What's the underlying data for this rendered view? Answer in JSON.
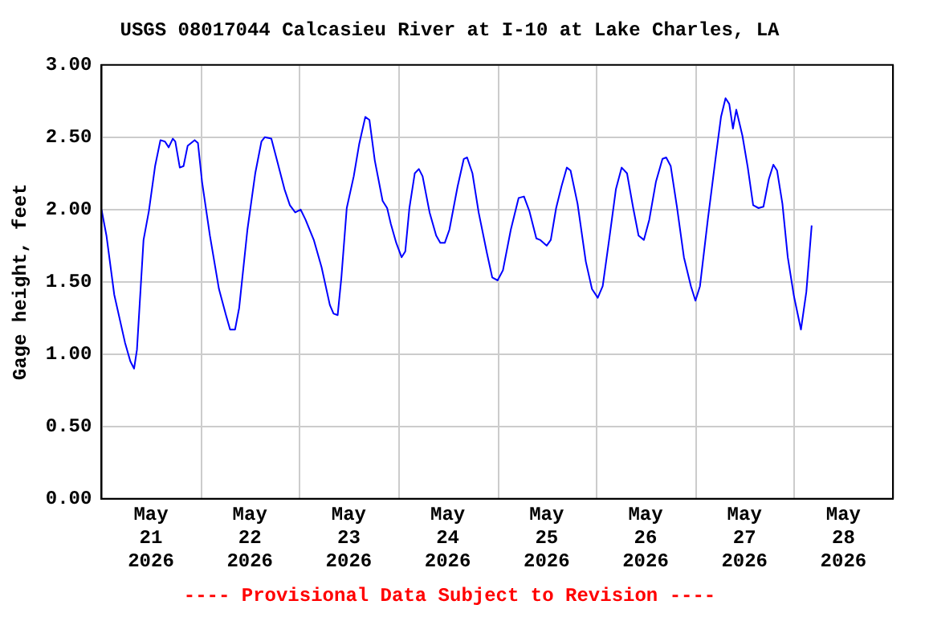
{
  "chart_data": {
    "type": "line",
    "title": "USGS 08017044 Calcasieu River at I-10 at Lake Charles, LA",
    "ylabel": "Gage height, feet",
    "annotations": [
      "---- Provisional Data Subject to Revision ----"
    ],
    "x": [
      "2026-05-21T00:00",
      "2026-05-21T01:12",
      "2026-05-21T03:06",
      "2026-05-21T05:42",
      "2026-05-21T07:00",
      "2026-05-21T07:54",
      "2026-05-21T08:36",
      "2026-05-21T10:12",
      "2026-05-21T11:30",
      "2026-05-21T13:00",
      "2026-05-21T14:18",
      "2026-05-21T15:24",
      "2026-05-21T16:18",
      "2026-05-21T17:18",
      "2026-05-21T17:54",
      "2026-05-21T19:00",
      "2026-05-21T19:54",
      "2026-05-21T20:54",
      "2026-05-21T22:36",
      "2026-05-21T23:24",
      "2026-05-22T00:24",
      "2026-05-22T02:18",
      "2026-05-22T04:30",
      "2026-05-22T06:12",
      "2026-05-22T07:12",
      "2026-05-22T08:24",
      "2026-05-22T09:24",
      "2026-05-22T11:24",
      "2026-05-22T13:18",
      "2026-05-22T14:48",
      "2026-05-22T15:36",
      "2026-05-22T17:12",
      "2026-05-22T18:24",
      "2026-05-22T20:24",
      "2026-05-22T21:42",
      "2026-05-22T23:00",
      "2026-05-23T00:18",
      "2026-05-23T01:30",
      "2026-05-23T03:30",
      "2026-05-23T05:24",
      "2026-05-23T07:24",
      "2026-05-23T08:18",
      "2026-05-23T09:18",
      "2026-05-23T10:12",
      "2026-05-23T11:30",
      "2026-05-23T13:12",
      "2026-05-23T14:30",
      "2026-05-23T16:00",
      "2026-05-23T17:00",
      "2026-05-23T18:18",
      "2026-05-23T20:12",
      "2026-05-23T21:18",
      "2026-05-23T22:12",
      "2026-05-23T23:30",
      "2026-05-24T00:48",
      "2026-05-24T01:42",
      "2026-05-24T02:42",
      "2026-05-24T04:00",
      "2026-05-24T05:00",
      "2026-05-24T05:54",
      "2026-05-24T07:36",
      "2026-05-24T09:12",
      "2026-05-24T10:12",
      "2026-05-24T11:18",
      "2026-05-24T12:24",
      "2026-05-24T14:24",
      "2026-05-24T15:54",
      "2026-05-24T16:42",
      "2026-05-24T18:00",
      "2026-05-24T19:30",
      "2026-05-24T21:30",
      "2026-05-24T22:48",
      "2026-05-25T00:06",
      "2026-05-25T01:24",
      "2026-05-25T03:18",
      "2026-05-25T05:12",
      "2026-05-25T06:30",
      "2026-05-25T07:48",
      "2026-05-25T09:30",
      "2026-05-25T10:24",
      "2026-05-25T12:00",
      "2026-05-25T13:00",
      "2026-05-25T14:18",
      "2026-05-25T15:36",
      "2026-05-25T16:54",
      "2026-05-25T17:48",
      "2026-05-25T19:30",
      "2026-05-25T21:30",
      "2026-05-25T23:00",
      "2026-05-26T00:24",
      "2026-05-26T01:36",
      "2026-05-26T03:18",
      "2026-05-26T04:48",
      "2026-05-26T06:12",
      "2026-05-26T07:30",
      "2026-05-26T09:00",
      "2026-05-26T10:18",
      "2026-05-26T11:36",
      "2026-05-26T12:54",
      "2026-05-26T14:30",
      "2026-05-26T16:06",
      "2026-05-26T17:00",
      "2026-05-26T18:06",
      "2026-05-26T19:36",
      "2026-05-26T21:18",
      "2026-05-26T23:00",
      "2026-05-27T00:06",
      "2026-05-27T01:12",
      "2026-05-27T03:06",
      "2026-05-27T05:06",
      "2026-05-27T06:18",
      "2026-05-27T07:24",
      "2026-05-27T08:18",
      "2026-05-27T09:12",
      "2026-05-27T10:00",
      "2026-05-27T11:30",
      "2026-05-27T12:48",
      "2026-05-27T14:06",
      "2026-05-27T15:24",
      "2026-05-27T16:36",
      "2026-05-27T17:54",
      "2026-05-27T19:00",
      "2026-05-27T19:54",
      "2026-05-27T21:12",
      "2026-05-27T22:30",
      "2026-05-28T00:00",
      "2026-05-28T01:42",
      "2026-05-28T03:00",
      "2026-05-28T04:18"
    ],
    "series": [
      {
        "color": "#0000ff",
        "values": [
          2.0,
          1.82,
          1.41,
          1.08,
          0.95,
          0.9,
          1.03,
          1.79,
          1.99,
          2.3,
          2.48,
          2.47,
          2.43,
          2.49,
          2.47,
          2.29,
          2.3,
          2.44,
          2.48,
          2.46,
          2.19,
          1.82,
          1.45,
          1.27,
          1.17,
          1.17,
          1.32,
          1.86,
          2.25,
          2.47,
          2.5,
          2.49,
          2.36,
          2.14,
          2.03,
          1.98,
          2.0,
          1.93,
          1.79,
          1.6,
          1.34,
          1.28,
          1.27,
          1.53,
          2.01,
          2.23,
          2.45,
          2.64,
          2.62,
          2.34,
          2.06,
          2.01,
          1.9,
          1.77,
          1.67,
          1.71,
          2.01,
          2.25,
          2.28,
          2.23,
          1.98,
          1.82,
          1.77,
          1.77,
          1.86,
          2.16,
          2.35,
          2.36,
          2.25,
          1.98,
          1.7,
          1.53,
          1.51,
          1.58,
          1.86,
          2.08,
          2.09,
          1.99,
          1.8,
          1.79,
          1.75,
          1.79,
          2.01,
          2.16,
          2.29,
          2.27,
          2.04,
          1.64,
          1.45,
          1.39,
          1.47,
          1.82,
          2.14,
          2.29,
          2.25,
          2.01,
          1.82,
          1.79,
          1.93,
          2.19,
          2.35,
          2.36,
          2.3,
          2.02,
          1.67,
          1.47,
          1.37,
          1.47,
          1.93,
          2.38,
          2.64,
          2.77,
          2.73,
          2.56,
          2.69,
          2.51,
          2.29,
          2.03,
          2.01,
          2.02,
          2.21,
          2.31,
          2.27,
          2.04,
          1.67,
          1.4,
          1.17,
          1.43,
          1.89
        ]
      }
    ],
    "xlim": [
      "2026-05-21T00:00",
      "2026-05-29T00:00"
    ],
    "xticks": [
      {
        "value": "2026-05-21T00:00",
        "label": null
      },
      {
        "value": "2026-05-21T12:00",
        "label": "May 21 2026"
      },
      {
        "value": "2026-05-22T00:00",
        "label": null
      },
      {
        "value": "2026-05-22T12:00",
        "label": "May 22 2026"
      },
      {
        "value": "2026-05-23T00:00",
        "label": null
      },
      {
        "value": "2026-05-23T12:00",
        "label": "May 23 2026"
      },
      {
        "value": "2026-05-24T00:00",
        "label": null
      },
      {
        "value": "2026-05-24T12:00",
        "label": "May 24 2026"
      },
      {
        "value": "2026-05-25T00:00",
        "label": null
      },
      {
        "value": "2026-05-25T12:00",
        "label": "May 25 2026"
      },
      {
        "value": "2026-05-26T00:00",
        "label": null
      },
      {
        "value": "2026-05-26T12:00",
        "label": "May 26 2026"
      },
      {
        "value": "2026-05-27T00:00",
        "label": null
      },
      {
        "value": "2026-05-27T12:00",
        "label": "May 27 2026"
      },
      {
        "value": "2026-05-28T00:00",
        "label": null
      },
      {
        "value": "2026-05-28T12:00",
        "label": "May 28 2026"
      },
      {
        "value": "2026-05-29T00:00",
        "label": null
      }
    ],
    "ylim": [
      0,
      3
    ],
    "yticks": [
      {
        "value": 0,
        "label": "0.00"
      },
      {
        "value": 0.5,
        "label": "0.50"
      },
      {
        "value": 1,
        "label": "1.00"
      },
      {
        "value": 1.5,
        "label": "1.50"
      },
      {
        "value": 2,
        "label": "2.00"
      },
      {
        "value": 2.5,
        "label": "2.50"
      },
      {
        "value": 3,
        "label": "3.00"
      }
    ],
    "grid": true,
    "legend": false,
    "marker": "none",
    "line_style": "solid"
  }
}
